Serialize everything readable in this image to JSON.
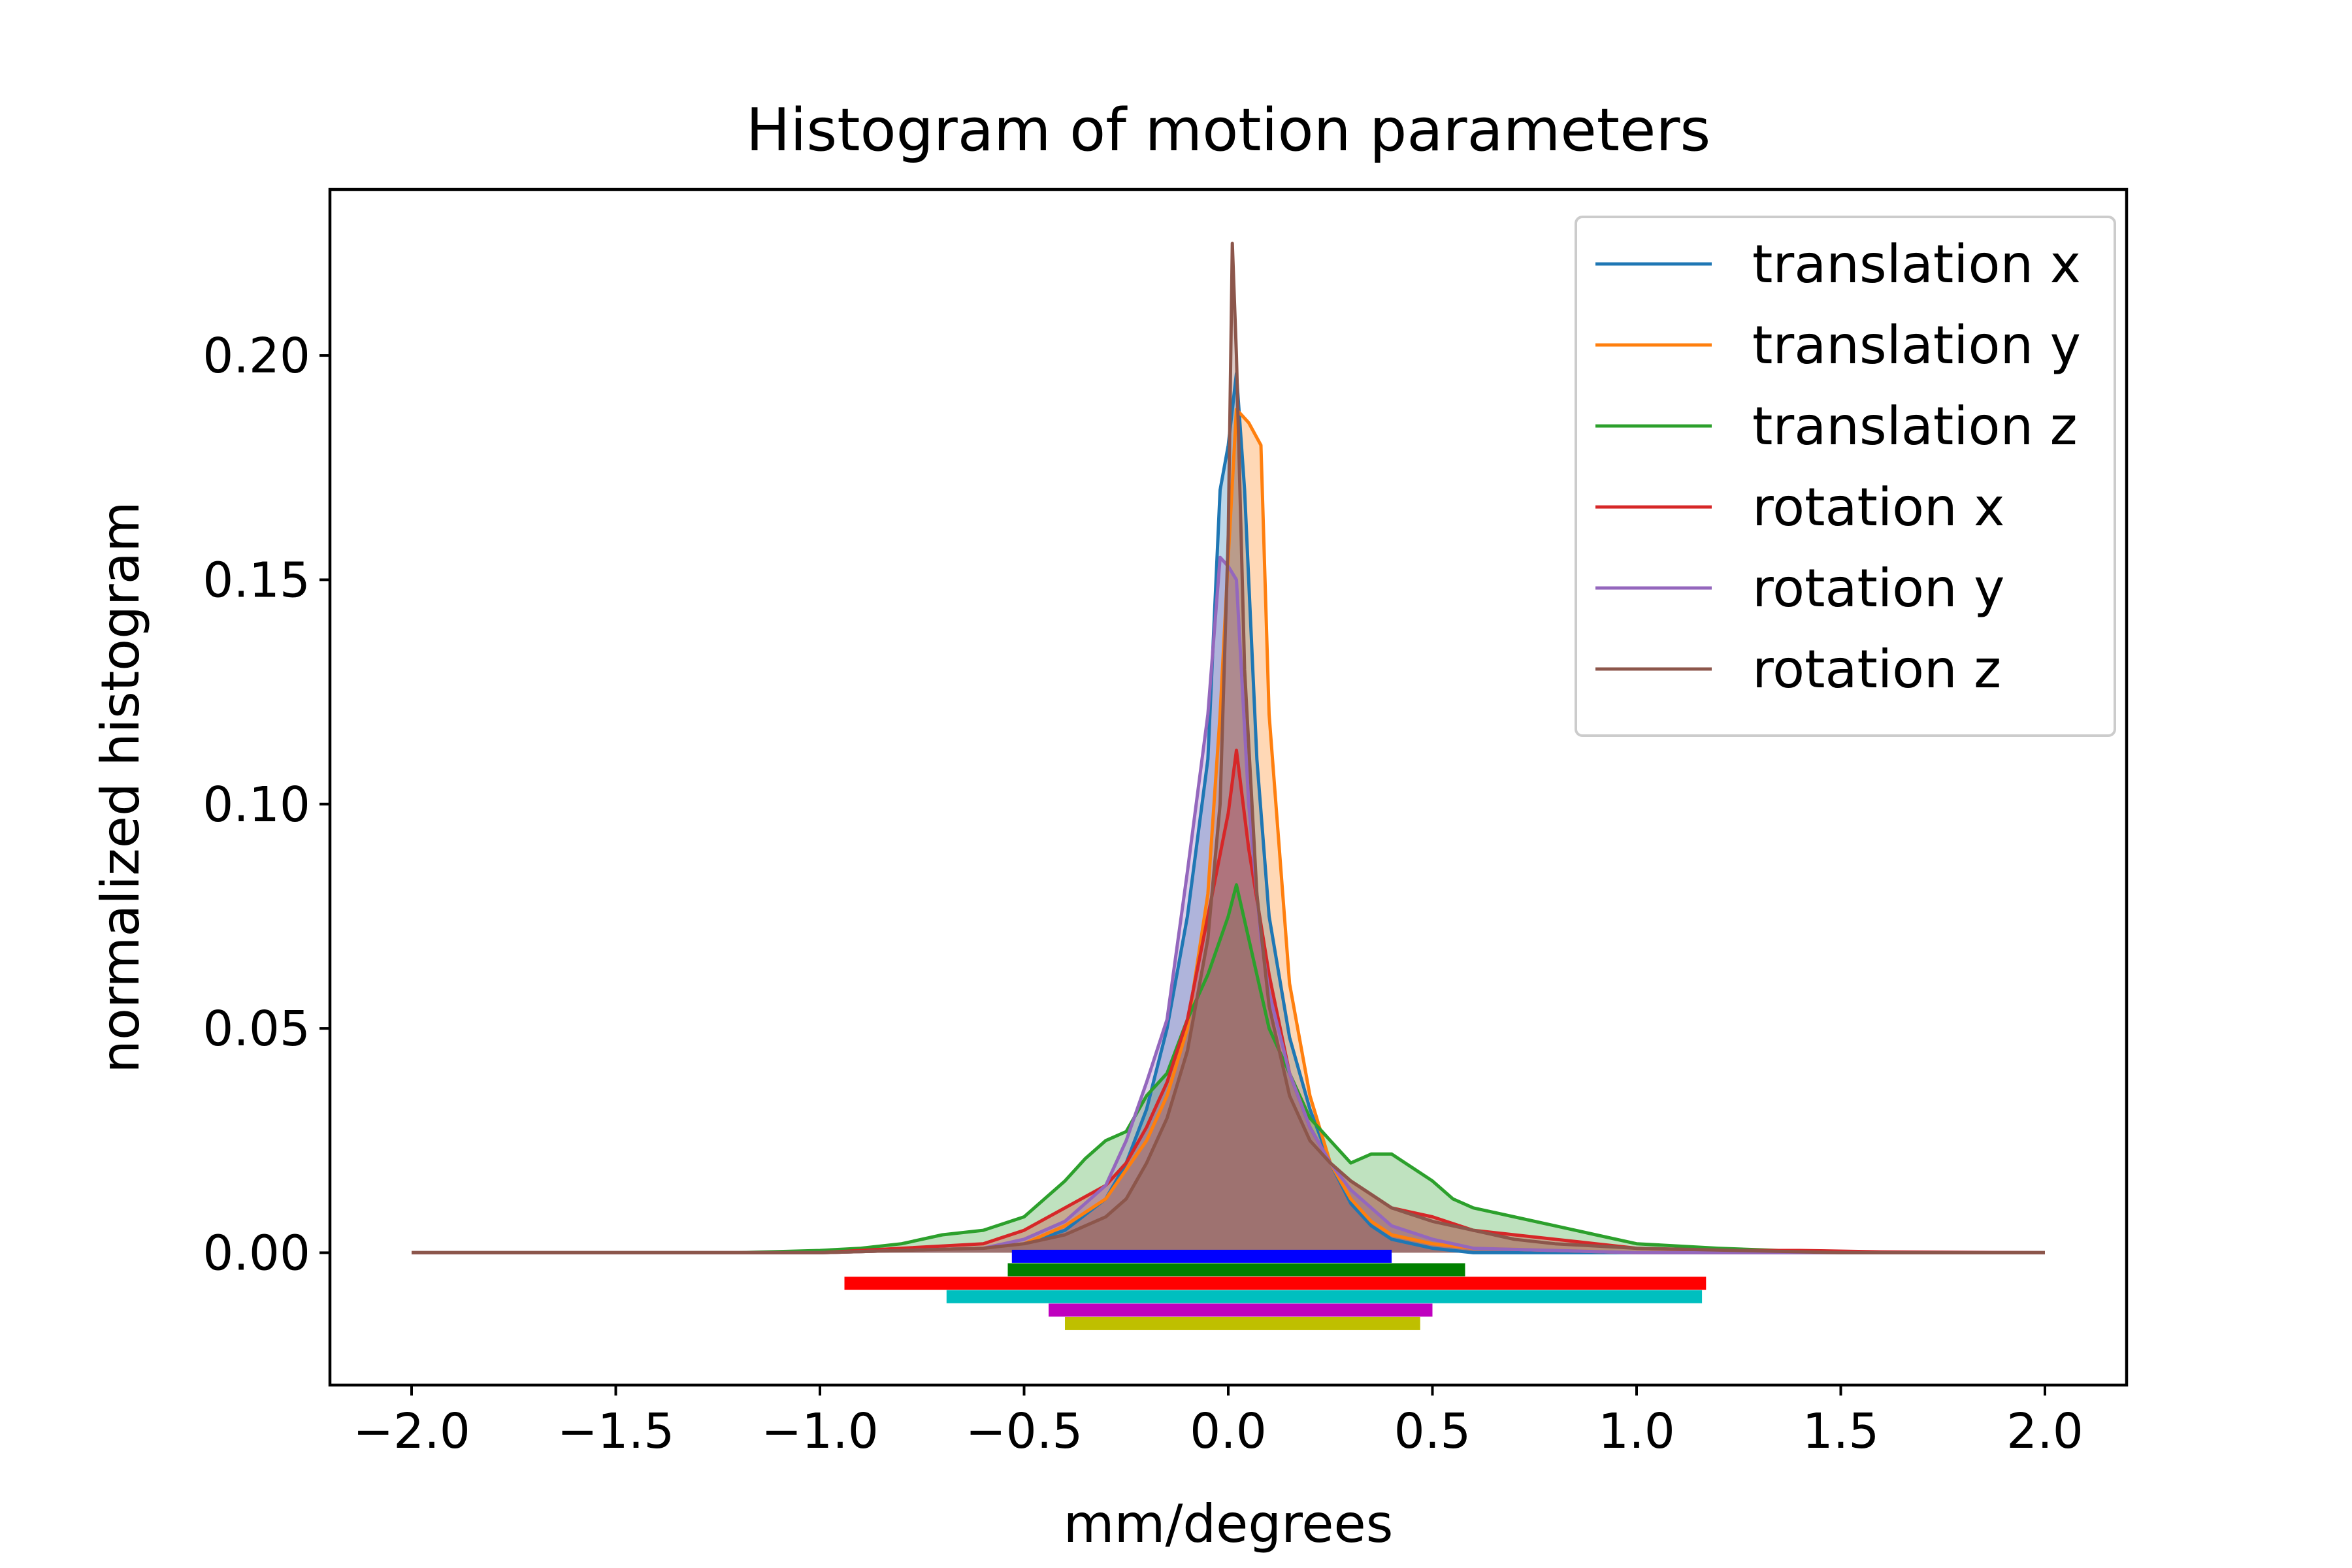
{
  "chart_data": {
    "type": "area",
    "title": "Histogram of motion parameters",
    "xlabel": "mm/degrees",
    "ylabel": "normalized histogram",
    "xlim": [
      -2.2,
      2.2
    ],
    "ylim": [
      -0.0295,
      0.237
    ],
    "xticks": [
      -2.0,
      -1.5,
      -1.0,
      -0.5,
      0.0,
      0.5,
      1.0,
      1.5,
      2.0
    ],
    "xtick_labels": [
      "−2.0",
      "−1.5",
      "−1.0",
      "−0.5",
      "0.0",
      "0.5",
      "1.0",
      "1.5",
      "2.0"
    ],
    "yticks": [
      0.0,
      0.05,
      0.1,
      0.15,
      0.2
    ],
    "ytick_labels": [
      "0.00",
      "0.05",
      "0.10",
      "0.15",
      "0.20"
    ],
    "grid": false,
    "legend_position": "top-right",
    "series": [
      {
        "name": "translation x",
        "color": "#1f77b4",
        "x": [
          -2.0,
          -1.0,
          -0.6,
          -0.5,
          -0.4,
          -0.3,
          -0.25,
          -0.2,
          -0.15,
          -0.1,
          -0.05,
          -0.02,
          0.0,
          0.02,
          0.04,
          0.07,
          0.1,
          0.15,
          0.2,
          0.25,
          0.3,
          0.35,
          0.4,
          0.5,
          0.6,
          1.0,
          2.0
        ],
        "values": [
          0.0,
          0.0,
          0.001,
          0.002,
          0.005,
          0.012,
          0.02,
          0.032,
          0.05,
          0.075,
          0.11,
          0.17,
          0.18,
          0.196,
          0.17,
          0.11,
          0.075,
          0.048,
          0.032,
          0.02,
          0.011,
          0.006,
          0.003,
          0.001,
          0.0,
          0.0,
          0.0
        ]
      },
      {
        "name": "translation y",
        "color": "#ff7f0e",
        "x": [
          -2.0,
          -1.0,
          -0.6,
          -0.5,
          -0.4,
          -0.3,
          -0.2,
          -0.15,
          -0.1,
          -0.05,
          -0.02,
          0.0,
          0.02,
          0.05,
          0.08,
          0.1,
          0.15,
          0.2,
          0.25,
          0.3,
          0.35,
          0.4,
          0.5,
          0.6,
          1.0,
          2.0
        ],
        "values": [
          0.0,
          0.0,
          0.001,
          0.002,
          0.006,
          0.012,
          0.025,
          0.035,
          0.05,
          0.08,
          0.12,
          0.155,
          0.188,
          0.185,
          0.18,
          0.12,
          0.06,
          0.035,
          0.02,
          0.012,
          0.007,
          0.004,
          0.002,
          0.001,
          0.0,
          0.0
        ]
      },
      {
        "name": "translation z",
        "color": "#2ca02c",
        "x": [
          -2.0,
          -1.2,
          -1.0,
          -0.9,
          -0.8,
          -0.7,
          -0.6,
          -0.5,
          -0.45,
          -0.4,
          -0.35,
          -0.3,
          -0.25,
          -0.2,
          -0.15,
          -0.1,
          -0.05,
          0.0,
          0.02,
          0.05,
          0.1,
          0.15,
          0.2,
          0.25,
          0.3,
          0.35,
          0.4,
          0.45,
          0.5,
          0.55,
          0.6,
          0.7,
          0.8,
          0.9,
          1.0,
          1.2,
          1.5,
          2.0
        ],
        "values": [
          0.0,
          0.0,
          0.0005,
          0.001,
          0.002,
          0.004,
          0.005,
          0.008,
          0.012,
          0.016,
          0.021,
          0.025,
          0.027,
          0.035,
          0.04,
          0.052,
          0.062,
          0.075,
          0.082,
          0.07,
          0.05,
          0.04,
          0.03,
          0.025,
          0.02,
          0.022,
          0.022,
          0.019,
          0.016,
          0.012,
          0.01,
          0.008,
          0.006,
          0.004,
          0.002,
          0.001,
          0.0,
          0.0
        ]
      },
      {
        "name": "rotation x",
        "color": "#d62728",
        "x": [
          -2.0,
          -1.0,
          -0.9,
          -0.8,
          -0.6,
          -0.5,
          -0.4,
          -0.3,
          -0.25,
          -0.2,
          -0.15,
          -0.1,
          -0.05,
          0.0,
          0.02,
          0.05,
          0.1,
          0.15,
          0.2,
          0.25,
          0.3,
          0.35,
          0.4,
          0.5,
          0.6,
          0.7,
          0.8,
          0.9,
          1.0,
          1.2,
          1.4,
          1.6,
          2.0
        ],
        "values": [
          0.0,
          0.0,
          0.0005,
          0.001,
          0.002,
          0.005,
          0.01,
          0.015,
          0.02,
          0.028,
          0.038,
          0.052,
          0.075,
          0.098,
          0.112,
          0.09,
          0.062,
          0.04,
          0.028,
          0.02,
          0.016,
          0.013,
          0.01,
          0.008,
          0.005,
          0.004,
          0.003,
          0.002,
          0.001,
          0.0005,
          0.0005,
          0.0002,
          0.0
        ]
      },
      {
        "name": "rotation y",
        "color": "#9467bd",
        "x": [
          -2.0,
          -1.0,
          -0.6,
          -0.5,
          -0.4,
          -0.3,
          -0.25,
          -0.2,
          -0.15,
          -0.1,
          -0.05,
          -0.02,
          0.0,
          0.02,
          0.05,
          0.08,
          0.1,
          0.15,
          0.2,
          0.25,
          0.3,
          0.35,
          0.4,
          0.5,
          0.6,
          1.0,
          2.0
        ],
        "values": [
          0.0,
          0.0,
          0.001,
          0.003,
          0.007,
          0.015,
          0.025,
          0.038,
          0.052,
          0.085,
          0.12,
          0.155,
          0.153,
          0.15,
          0.1,
          0.07,
          0.058,
          0.04,
          0.028,
          0.02,
          0.014,
          0.01,
          0.006,
          0.003,
          0.001,
          0.0,
          0.0
        ]
      },
      {
        "name": "rotation z",
        "color": "#8c564b",
        "x": [
          -2.0,
          -1.0,
          -0.6,
          -0.5,
          -0.4,
          -0.3,
          -0.25,
          -0.2,
          -0.15,
          -0.1,
          -0.05,
          -0.02,
          0.0,
          0.01,
          0.02,
          0.04,
          0.07,
          0.1,
          0.15,
          0.2,
          0.25,
          0.3,
          0.35,
          0.4,
          0.5,
          0.6,
          0.7,
          0.8,
          1.0,
          1.5,
          2.0
        ],
        "values": [
          0.0,
          0.0,
          0.001,
          0.002,
          0.004,
          0.008,
          0.012,
          0.02,
          0.03,
          0.045,
          0.07,
          0.1,
          0.16,
          0.225,
          0.2,
          0.13,
          0.08,
          0.055,
          0.035,
          0.025,
          0.02,
          0.016,
          0.013,
          0.01,
          0.007,
          0.005,
          0.003,
          0.002,
          0.001,
          0.0,
          0.0
        ]
      }
    ],
    "range_bars": [
      {
        "color": "#0000ff",
        "y": -0.0008,
        "x_start": -0.53,
        "x_end": 0.4
      },
      {
        "color": "#008000",
        "y": -0.0038,
        "x_start": -0.54,
        "x_end": 0.58
      },
      {
        "color": "#ff0000",
        "y": -0.0068,
        "x_start": -0.94,
        "x_end": 1.17
      },
      {
        "color": "#00bfbf",
        "y": -0.0098,
        "x_start": -0.69,
        "x_end": 1.16
      },
      {
        "color": "#bf00bf",
        "y": -0.0128,
        "x_start": -0.44,
        "x_end": 0.5
      },
      {
        "color": "#bfbf00",
        "y": -0.0158,
        "x_start": -0.4,
        "x_end": 0.47
      }
    ]
  }
}
